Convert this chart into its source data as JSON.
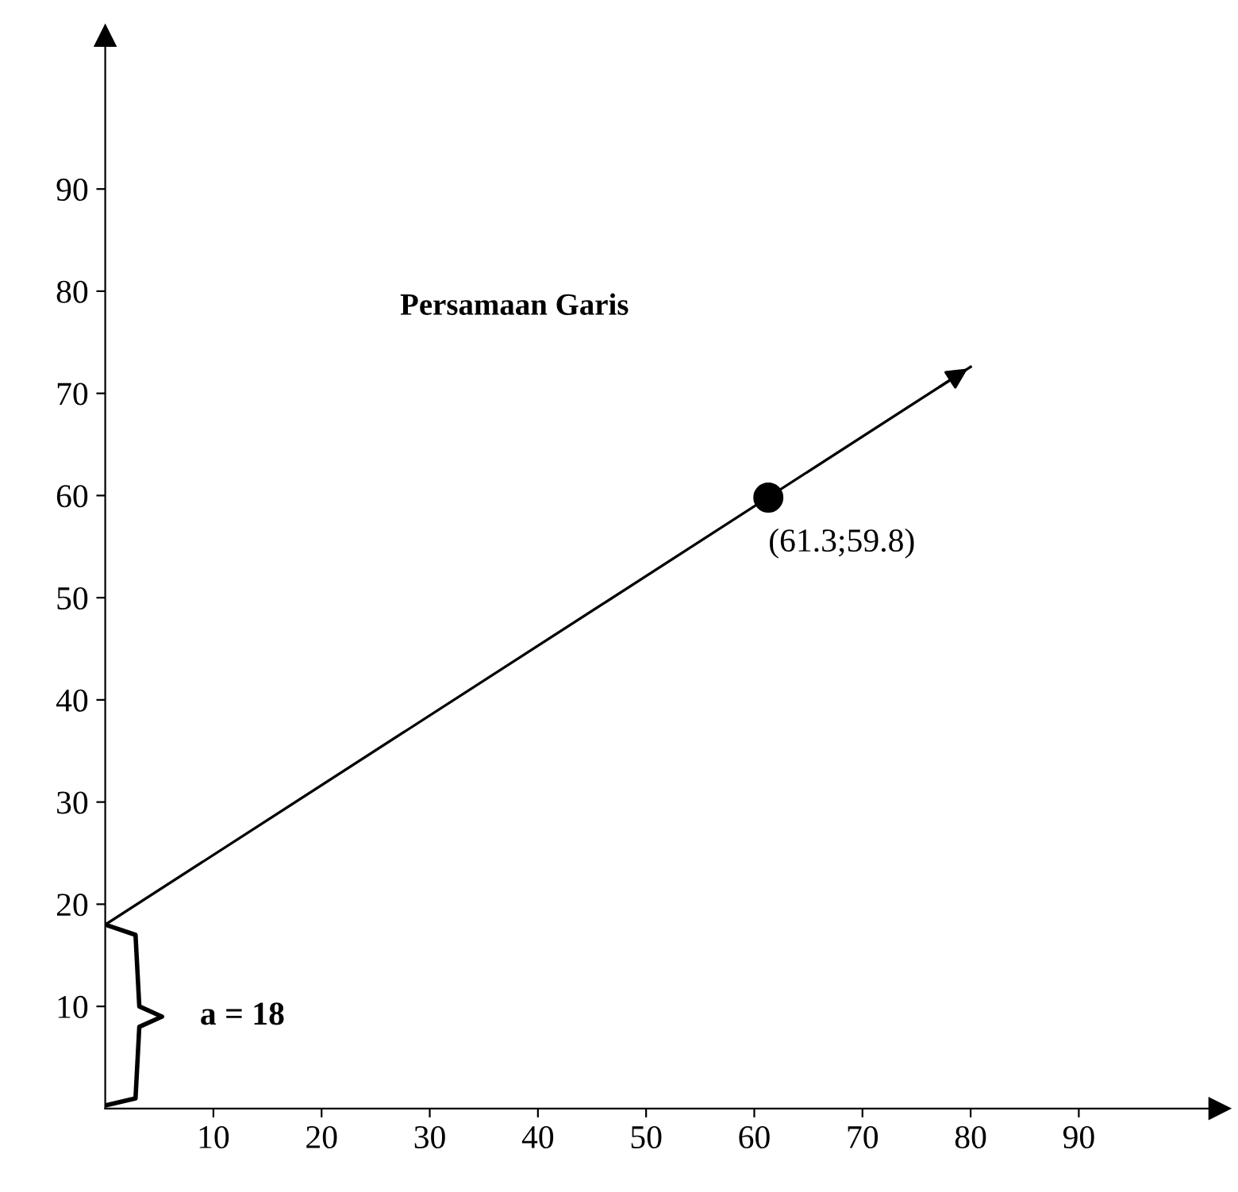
{
  "chart_data": {
    "type": "line",
    "title": "Persamaan Garis",
    "x": [
      0,
      80
    ],
    "series": [
      {
        "color": "#000000",
        "values": [
          18,
          72.6
        ]
      },
      {
        "type": "scatter",
        "x": [
          61.3
        ],
        "color": "#000000",
        "values": [
          59.8
        ]
      }
    ],
    "xlim": [
      0,
      103
    ],
    "ylim": [
      0,
      105
    ],
    "xticks": [
      10,
      20,
      30,
      40,
      50,
      60,
      70,
      80,
      90
    ],
    "yticks": [
      10,
      20,
      30,
      40,
      50,
      60,
      70,
      80,
      90
    ],
    "grid": false,
    "annotations": [
      {
        "text": "(61.3;59.8)",
        "x": 61.3,
        "y": 59.8
      },
      "a = 18"
    ]
  }
}
